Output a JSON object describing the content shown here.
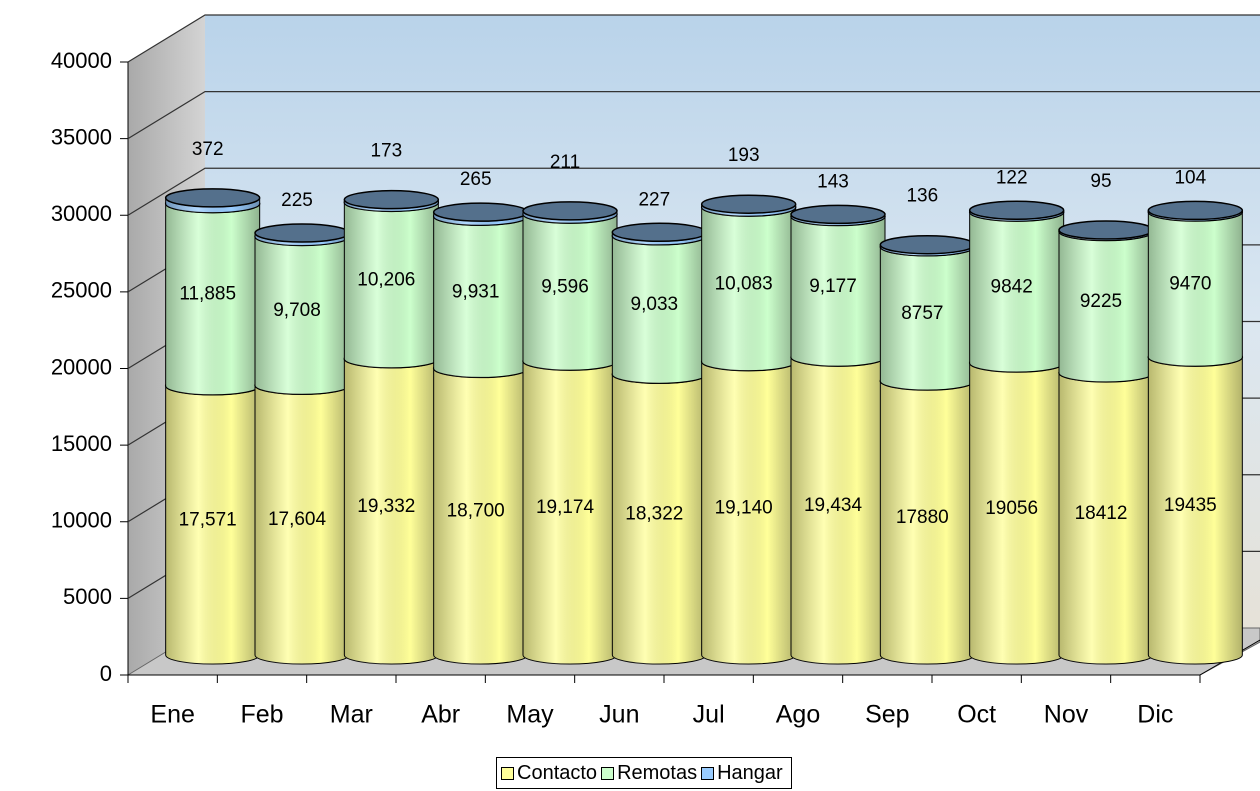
{
  "chart_data": {
    "type": "bar3d-stacked",
    "categories": [
      "Ene",
      "Feb",
      "Mar",
      "Abr",
      "May",
      "Jun",
      "Jul",
      "Ago",
      "Sep",
      "Oct",
      "Nov",
      "Dic"
    ],
    "series": [
      {
        "name": "Contacto",
        "color": "#ffff99",
        "values": [
          17571,
          17604,
          19332,
          18700,
          19174,
          18322,
          19140,
          19434,
          17880,
          19056,
          18412,
          19435
        ],
        "value_labels": [
          "17,571",
          "17,604",
          "19,332",
          "18,700",
          "19,174",
          "18,322",
          "19,140",
          "19,434",
          "17880",
          "19056",
          "18412",
          "19435"
        ]
      },
      {
        "name": "Remotas",
        "color": "#ccffcc",
        "values": [
          11885,
          9708,
          10206,
          9931,
          9596,
          9033,
          10083,
          9177,
          8757,
          9842,
          9225,
          9470
        ],
        "value_labels": [
          "11,885",
          "9,708",
          "10,206",
          "9,931",
          "9,596",
          "9,033",
          "10,083",
          "9,177",
          "8757",
          "9842",
          "9225",
          "9470"
        ]
      },
      {
        "name": "Hangar",
        "color": "#99ccff",
        "values": [
          372,
          225,
          173,
          265,
          211,
          227,
          193,
          143,
          136,
          122,
          95,
          104
        ]
      }
    ],
    "ylim": [
      0,
      40000
    ],
    "yticks": [
      0,
      5000,
      10000,
      15000,
      20000,
      25000,
      30000,
      35000,
      40000
    ],
    "grid": true,
    "legend": "bottom"
  }
}
